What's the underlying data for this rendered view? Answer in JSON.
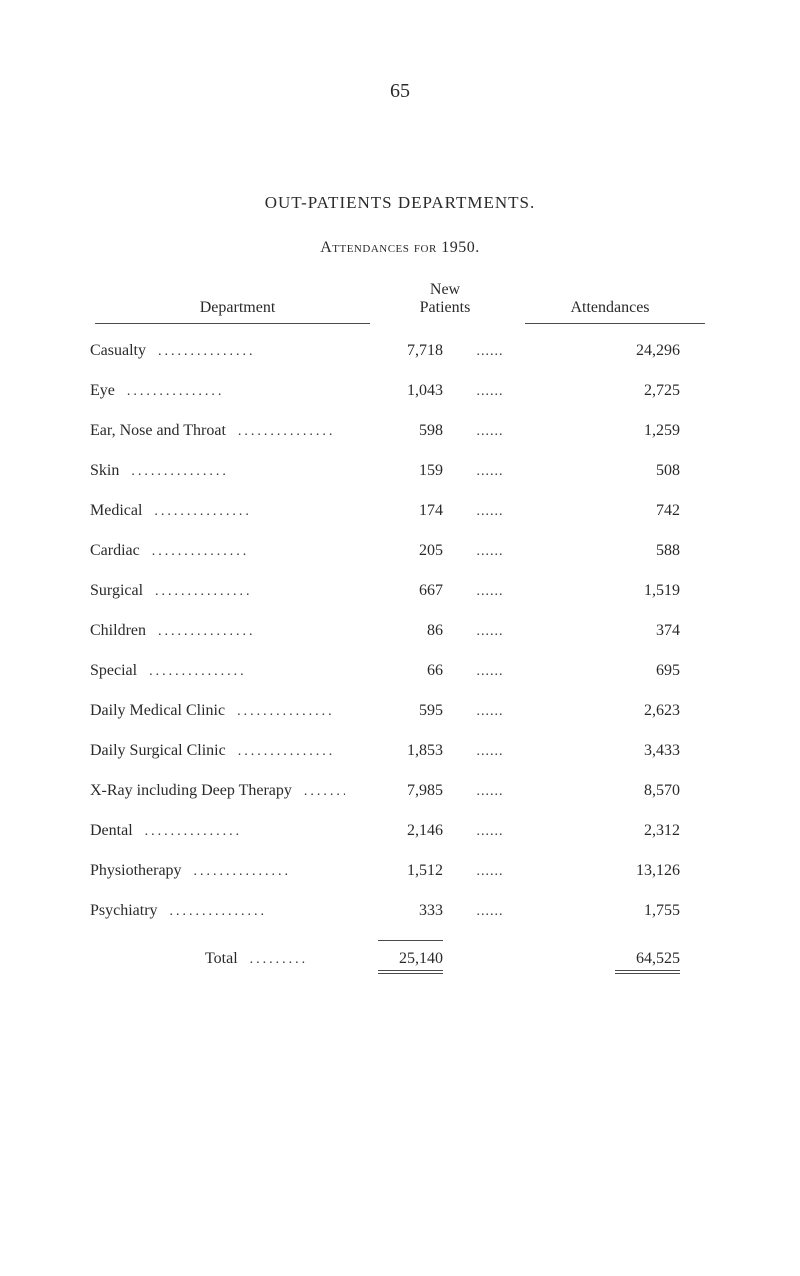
{
  "page_number": "65",
  "section_title": "OUT-PATIENTS DEPARTMENTS.",
  "sub_title": "Attendances for 1950.",
  "headers": {
    "department": "Department",
    "new_patients_line1": "New",
    "new_patients_line2": "Patients",
    "attendances": "Attendances"
  },
  "rows": [
    {
      "dept": "Casualty",
      "new_patients": "7,718",
      "attendances": "24,296"
    },
    {
      "dept": "Eye",
      "new_patients": "1,043",
      "attendances": "2,725"
    },
    {
      "dept": "Ear, Nose and Throat",
      "new_patients": "598",
      "attendances": "1,259"
    },
    {
      "dept": "Skin",
      "new_patients": "159",
      "attendances": "508"
    },
    {
      "dept": "Medical",
      "new_patients": "174",
      "attendances": "742"
    },
    {
      "dept": "Cardiac",
      "new_patients": "205",
      "attendances": "588"
    },
    {
      "dept": "Surgical",
      "new_patients": "667",
      "attendances": "1,519"
    },
    {
      "dept": "Children",
      "new_patients": "86",
      "attendances": "374"
    },
    {
      "dept": "Special",
      "new_patients": "66",
      "attendances": "695"
    },
    {
      "dept": "Daily Medical Clinic",
      "new_patients": "595",
      "attendances": "2,623"
    },
    {
      "dept": "Daily Surgical Clinic",
      "new_patients": "1,853",
      "attendances": "3,433"
    },
    {
      "dept": "X-Ray including Deep Therapy",
      "new_patients": "7,985",
      "attendances": "8,570"
    },
    {
      "dept": "Dental",
      "new_patients": "2,146",
      "attendances": "2,312"
    },
    {
      "dept": "Physiotherapy",
      "new_patients": "1,512",
      "attendances": "13,126"
    },
    {
      "dept": "Psychiatry",
      "new_patients": "333",
      "attendances": "1,755"
    }
  ],
  "total": {
    "label": "Total",
    "new_patients": "25,140",
    "attendances": "64,525"
  },
  "styling": {
    "background_color": "#ffffff",
    "text_color": "#2a2a2a",
    "rule_color": "#4a4a4a",
    "body_fontsize": 16,
    "page_number_fontsize": 20,
    "title_fontsize": 17
  }
}
